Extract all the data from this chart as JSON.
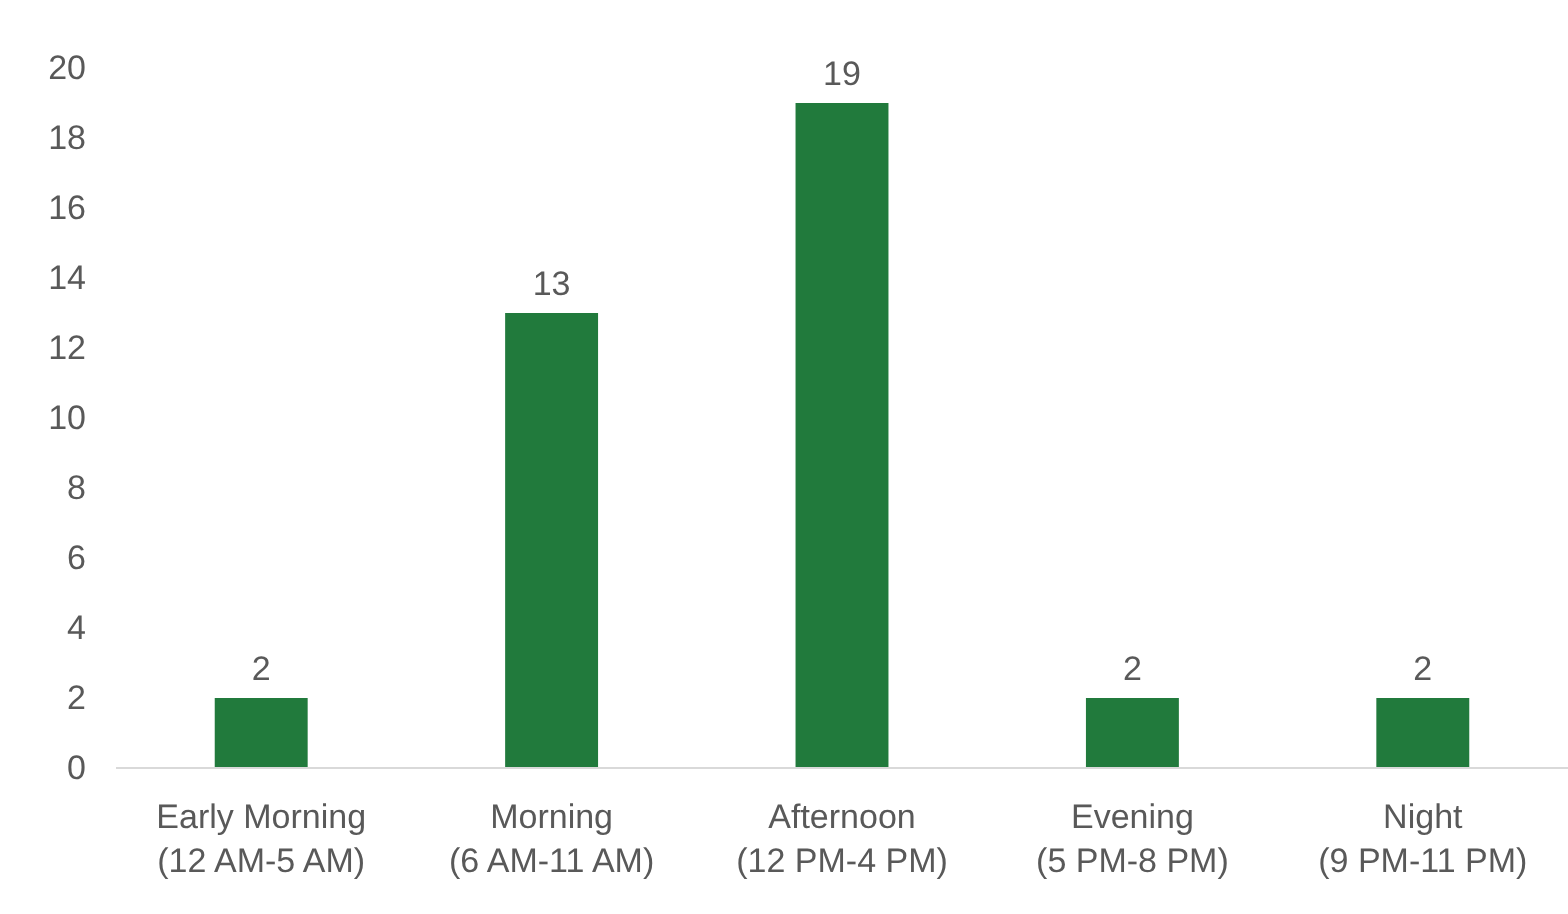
{
  "chart_data": {
    "type": "bar",
    "categories": [
      "Early Morning (12 AM-5 AM)",
      "Morning (6 AM-11 AM)",
      "Afternoon (12 PM-4 PM)",
      "Evening (5 PM-8 PM)",
      "Night (9 PM-11 PM)"
    ],
    "values": [
      2,
      13,
      19,
      2,
      2
    ],
    "color": "#217a3c",
    "ylim": [
      0,
      20
    ],
    "yticks": [
      0,
      2,
      4,
      6,
      8,
      10,
      12,
      14,
      16,
      18,
      20
    ],
    "grid": false,
    "data_labels": true
  }
}
